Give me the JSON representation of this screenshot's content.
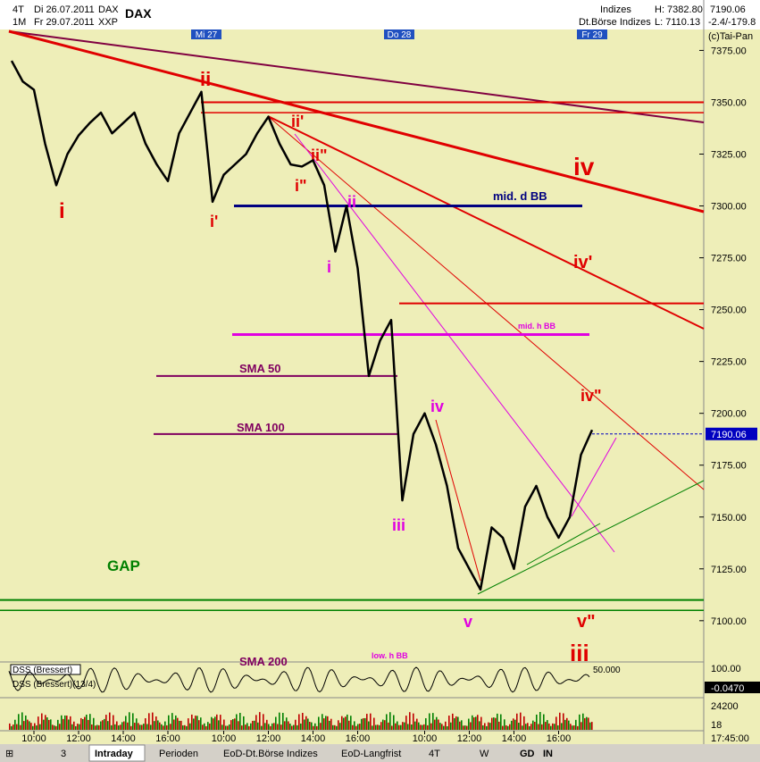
{
  "header": {
    "period": "4T",
    "date_from": "Di 26.07.2011",
    "symbol_small": "DAX",
    "interval": "1M",
    "date_to": "Fr 29.07.2011",
    "exchange": "XXP",
    "symbol": "DAX",
    "group": "Indizes",
    "market": "Dt.Börse Indizes",
    "high": "H: 7382.80",
    "low": "L: 7110.13",
    "change": "-2.4/-179.8",
    "copyright": "(c)Tai-Pan"
  },
  "days": [
    "Mi 27",
    "Do 28",
    "Fr 29"
  ],
  "annotations": [
    "i",
    "ii",
    "i'",
    "ii'",
    "i\"",
    "ii\"",
    "ii",
    "i",
    "iii",
    "iv",
    "v",
    "iv",
    "iv'",
    "iv\"",
    "v\"",
    "iii",
    "mid. d BB",
    "mid. h BB",
    "SMA 50",
    "SMA 100",
    "SMA 200",
    "low. h BB",
    "GAP"
  ],
  "chart_data": {
    "type": "line",
    "categories": [
      null,
      null,
      "10:00",
      null,
      null,
      null,
      "12:00",
      null,
      null,
      null,
      "14:00",
      null,
      null,
      null,
      "16:00",
      null,
      null,
      null,
      null,
      "10:00",
      null,
      null,
      null,
      "12:00",
      null,
      null,
      null,
      "14:00",
      null,
      null,
      null,
      "16:00",
      null,
      null,
      null,
      null,
      null,
      "10:00",
      null,
      null,
      null,
      "12:00",
      null,
      null,
      null,
      "14:00",
      null,
      null,
      null,
      "16:00",
      null,
      null,
      null
    ],
    "series": [
      {
        "name": "DAX",
        "color": "#000000",
        "values": [
          7370,
          7360,
          7356,
          7330,
          7310,
          7325,
          7334,
          7340,
          7345,
          7335,
          7340,
          7345,
          7330,
          7320,
          7312,
          7335,
          7345,
          7355,
          7302,
          7315,
          7320,
          7325,
          7335,
          7343,
          7330,
          7320,
          7319,
          7322,
          7310,
          7278,
          7300,
          7270,
          7218,
          7235,
          7245,
          7158,
          7190,
          7200,
          7185,
          7165,
          7135,
          7125,
          7115,
          7145,
          7140,
          7125,
          7155,
          7165,
          7150,
          7140,
          7150,
          7180,
          7192
        ]
      }
    ],
    "levels": [
      {
        "value": 7350,
        "color": "#e00000"
      },
      {
        "value": 7345,
        "color": "#e00000"
      },
      {
        "value": 7300,
        "color": "#000080"
      },
      {
        "value": 7253,
        "color": "#e00000"
      },
      {
        "value": 7238,
        "color": "#e000e0"
      },
      {
        "value": 7218,
        "color": "#800060"
      },
      {
        "value": 7190,
        "color": "#800060"
      },
      {
        "value": 7110,
        "color": "#008000"
      },
      {
        "value": 7105,
        "color": "#008000"
      }
    ],
    "last_price": {
      "value": 7190.06,
      "label": "7190.06"
    },
    "ylim": [
      7087,
      7395
    ],
    "yticks": [
      {
        "value": 7375,
        "label": "7375.00"
      },
      {
        "value": 7350,
        "label": "7350.00"
      },
      {
        "value": 7325,
        "label": "7325.00"
      },
      {
        "value": 7300,
        "label": "7300.00"
      },
      {
        "value": 7275,
        "label": "7275.00"
      },
      {
        "value": 7250,
        "label": "7250.00"
      },
      {
        "value": 7225,
        "label": "7225.00"
      },
      {
        "value": 7200,
        "label": "7200.00"
      },
      {
        "value": 7175,
        "label": "7175.00"
      },
      {
        "value": 7150,
        "label": "7150.00"
      },
      {
        "value": 7125,
        "label": "7125.00"
      },
      {
        "value": 7100,
        "label": "7100.00"
      }
    ]
  },
  "indicator": {
    "name": "DSS (Bressert)",
    "name_full": "DSS (Bressert)(13/4)",
    "top": "100.00",
    "mid": "50.000",
    "value": "-0.0470"
  },
  "volume": {
    "top": "24200",
    "bottom": "18"
  },
  "clock": "17:45:00",
  "tabs": [
    "Intraday",
    "Perioden",
    "EoD-Dt.Börse Indizes",
    "EoD-Langfrist"
  ],
  "toolbar": {
    "period": "4T",
    "mode": "W",
    "gd": "GD",
    "in": "IN",
    "count": "3"
  }
}
